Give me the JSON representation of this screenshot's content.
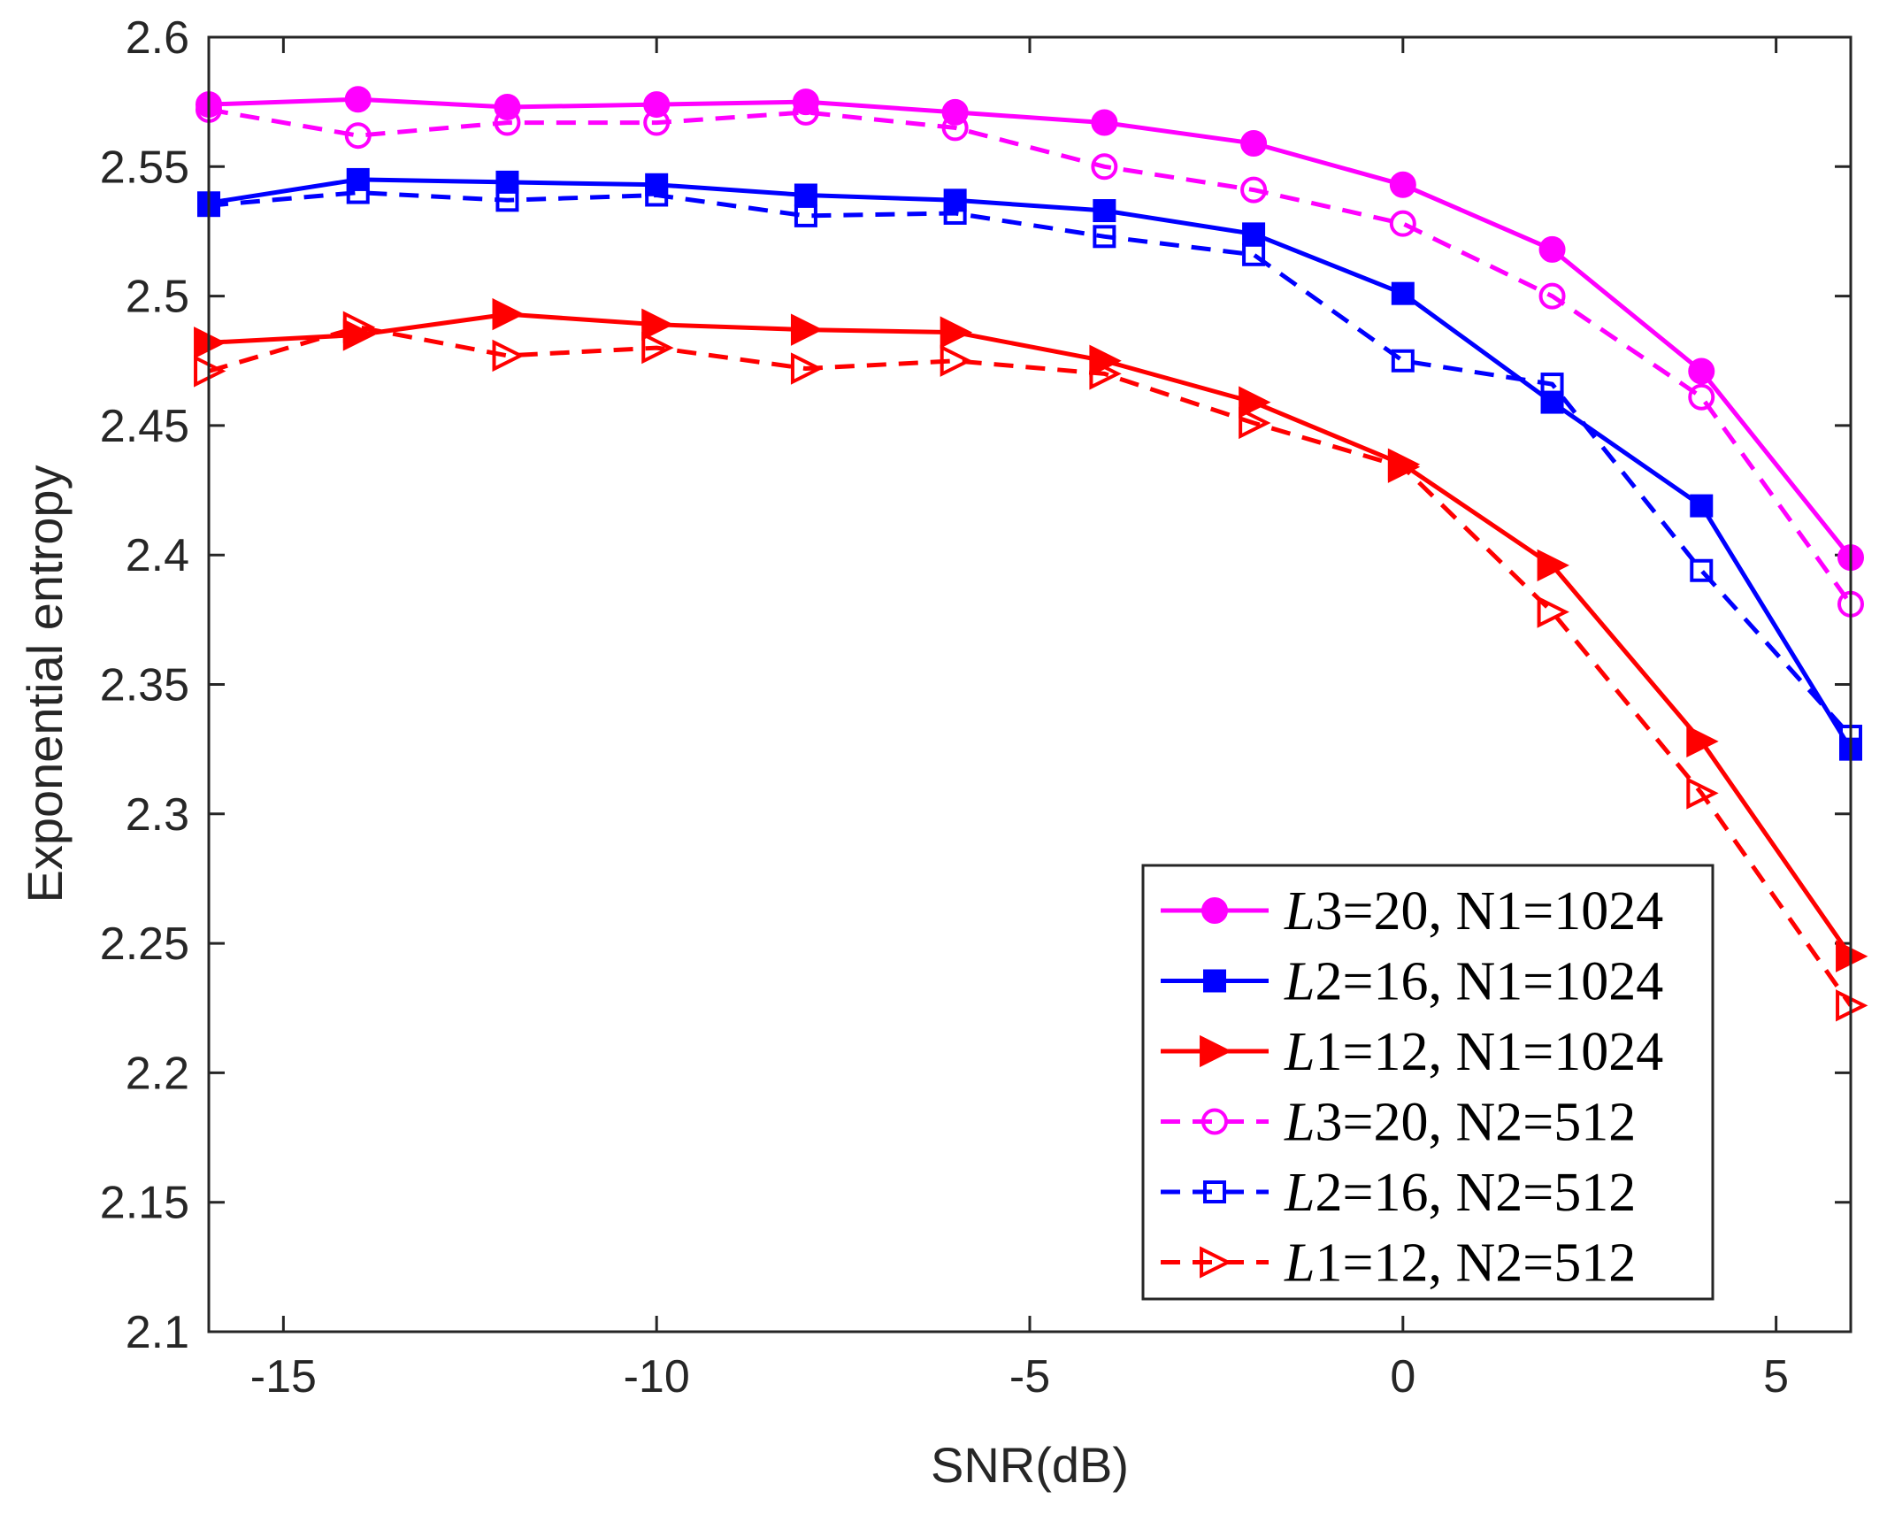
{
  "chart_data": {
    "type": "line",
    "title": "",
    "xlabel": "SNR(dB)",
    "ylabel": "Exponential entropy",
    "xlim": [
      -16,
      6
    ],
    "ylim": [
      2.1,
      2.6
    ],
    "grid": false,
    "legend_position": "bottom-right",
    "x": [
      -16,
      -14,
      -12,
      -10,
      -8,
      -6,
      -4,
      -2,
      0,
      2,
      4,
      6
    ],
    "xticks": [
      -15,
      -10,
      -5,
      0,
      5
    ],
    "xtick_labels": [
      "-15",
      "-10",
      "-5",
      "0",
      "5"
    ],
    "yticks": [
      2.1,
      2.15,
      2.2,
      2.25,
      2.3,
      2.35,
      2.4,
      2.45,
      2.5,
      2.55,
      2.6
    ],
    "ytick_labels": [
      "2.1",
      "2.15",
      "2.2",
      "2.25",
      "2.3",
      "2.35",
      "2.4",
      "2.45",
      "2.5",
      "2.55",
      "2.6"
    ],
    "series": [
      {
        "name": "L3=20, N1=1024",
        "legend_italic": "L",
        "legend_rest": "3=20, N1=1024",
        "color": "#ff00ff",
        "dashed": false,
        "marker": "circle",
        "filled": true,
        "values": [
          2.574,
          2.576,
          2.573,
          2.574,
          2.575,
          2.571,
          2.567,
          2.559,
          2.543,
          2.518,
          2.471,
          2.399
        ]
      },
      {
        "name": "L2=16, N1=1024",
        "legend_italic": "L",
        "legend_rest": "2=16, N1=1024",
        "color": "#0000ff",
        "dashed": false,
        "marker": "square",
        "filled": true,
        "values": [
          2.536,
          2.545,
          2.544,
          2.543,
          2.539,
          2.537,
          2.533,
          2.524,
          2.501,
          2.459,
          2.419,
          2.325
        ]
      },
      {
        "name": "L1=12, N1=1024",
        "legend_italic": "L",
        "legend_rest": "1=12, N1=1024",
        "color": "#ff0000",
        "dashed": false,
        "marker": "triangle-right",
        "filled": true,
        "values": [
          2.482,
          2.485,
          2.493,
          2.489,
          2.487,
          2.486,
          2.475,
          2.459,
          2.435,
          2.396,
          2.328,
          2.245
        ]
      },
      {
        "name": "L3=20, N2=512",
        "legend_italic": "L",
        "legend_rest": "3=20, N2=512",
        "color": "#ff00ff",
        "dashed": true,
        "marker": "circle",
        "filled": false,
        "values": [
          2.572,
          2.562,
          2.567,
          2.567,
          2.571,
          2.565,
          2.55,
          2.541,
          2.528,
          2.5,
          2.461,
          2.381
        ]
      },
      {
        "name": "L2=16, N2=512",
        "legend_italic": "L",
        "legend_rest": "2=16, N2=512",
        "color": "#0000ff",
        "dashed": true,
        "marker": "square",
        "filled": false,
        "values": [
          2.535,
          2.54,
          2.537,
          2.539,
          2.531,
          2.532,
          2.523,
          2.516,
          2.475,
          2.466,
          2.394,
          2.33
        ]
      },
      {
        "name": "L1=12, N2=512",
        "legend_italic": "L",
        "legend_rest": "1=12, N2=512",
        "color": "#ff0000",
        "dashed": true,
        "marker": "triangle-right",
        "filled": false,
        "values": [
          2.471,
          2.488,
          2.477,
          2.48,
          2.472,
          2.475,
          2.47,
          2.451,
          2.434,
          2.378,
          2.308,
          2.226
        ]
      }
    ]
  }
}
